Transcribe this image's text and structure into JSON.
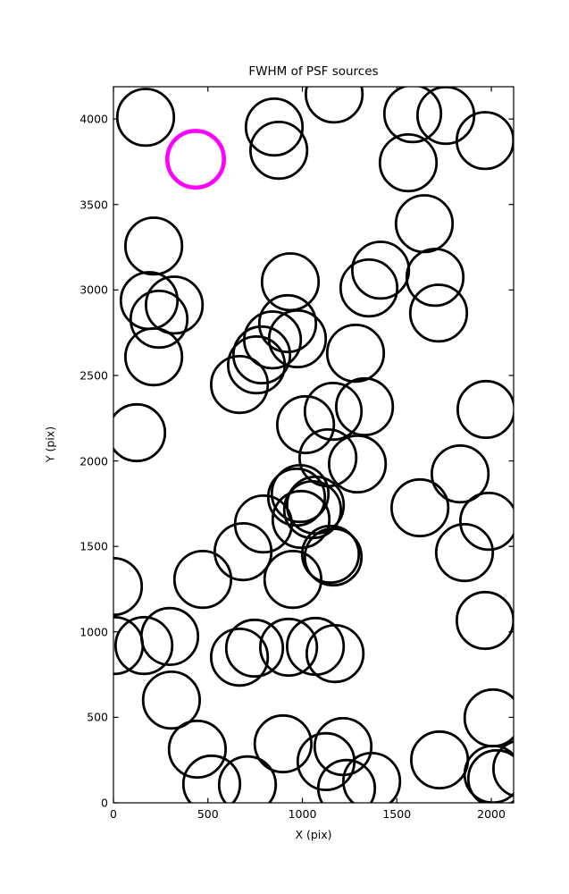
{
  "chart_data": {
    "type": "scatter",
    "title": "FWHM of PSF sources",
    "xlabel": "X (pix)",
    "ylabel": "Y (pix)",
    "xlim": [
      0,
      2118
    ],
    "ylim": [
      0,
      4189
    ],
    "x_ticks": [
      0,
      500,
      1000,
      1500,
      2000
    ],
    "y_ticks": [
      0,
      500,
      1000,
      1500,
      2000,
      2500,
      3000,
      3500,
      4000
    ],
    "grid": false,
    "legend": "none",
    "marker": "open-circle",
    "circle_radius_pix": 150,
    "colors": {
      "source_circle": "#000000",
      "highlight_circle": "#ff00ff",
      "axes": "#000000",
      "background": "#ffffff"
    },
    "highlight": {
      "x": 435,
      "y": 3765
    },
    "sources": [
      [
        170,
        4010
      ],
      [
        851,
        3953
      ],
      [
        875,
        3817
      ],
      [
        1168,
        4146
      ],
      [
        1584,
        4031
      ],
      [
        1759,
        4021
      ],
      [
        1967,
        3874
      ],
      [
        1560,
        3744
      ],
      [
        1645,
        3388
      ],
      [
        213,
        3257
      ],
      [
        936,
        3048
      ],
      [
        1414,
        3116
      ],
      [
        1352,
        3012
      ],
      [
        1702,
        3074
      ],
      [
        1721,
        2865
      ],
      [
        189,
        2938
      ],
      [
        322,
        2912
      ],
      [
        241,
        2829
      ],
      [
        213,
        2609
      ],
      [
        123,
        2165
      ],
      [
        922,
        2803
      ],
      [
        974,
        2714
      ],
      [
        842,
        2708
      ],
      [
        785,
        2620
      ],
      [
        757,
        2562
      ],
      [
        667,
        2447
      ],
      [
        1017,
        2212
      ],
      [
        1281,
        2630
      ],
      [
        1163,
        2290
      ],
      [
        1329,
        2317
      ],
      [
        1135,
        2018
      ],
      [
        1291,
        1982
      ],
      [
        1069,
        1741
      ],
      [
        1054,
        1715
      ],
      [
        794,
        1631
      ],
      [
        969,
        1788
      ],
      [
        988,
        1809
      ],
      [
        993,
        1658
      ],
      [
        950,
        1307
      ],
      [
        686,
        1469
      ],
      [
        1149,
        1454
      ],
      [
        1163,
        1438
      ],
      [
        1972,
        2301
      ],
      [
        1835,
        1924
      ],
      [
        1622,
        1726
      ],
      [
        1986,
        1647
      ],
      [
        1858,
        1464
      ],
      [
        1967,
        1067
      ],
      [
        2009,
        497
      ],
      [
        0,
        1265
      ],
      [
        473,
        1307
      ],
      [
        5,
        920
      ],
      [
        161,
        920
      ],
      [
        298,
        973
      ],
      [
        307,
        601
      ],
      [
        444,
        314
      ],
      [
        520,
        110
      ],
      [
        709,
        105
      ],
      [
        667,
        852
      ],
      [
        747,
        905
      ],
      [
        927,
        910
      ],
      [
        1069,
        915
      ],
      [
        1173,
        873
      ],
      [
        898,
        345
      ],
      [
        1215,
        329
      ],
      [
        1125,
        241
      ],
      [
        1367,
        125
      ],
      [
        1234,
        84
      ],
      [
        1726,
        251
      ],
      [
        2009,
        167
      ],
      [
        2028,
        141
      ],
      [
        2161,
        199
      ]
    ]
  }
}
